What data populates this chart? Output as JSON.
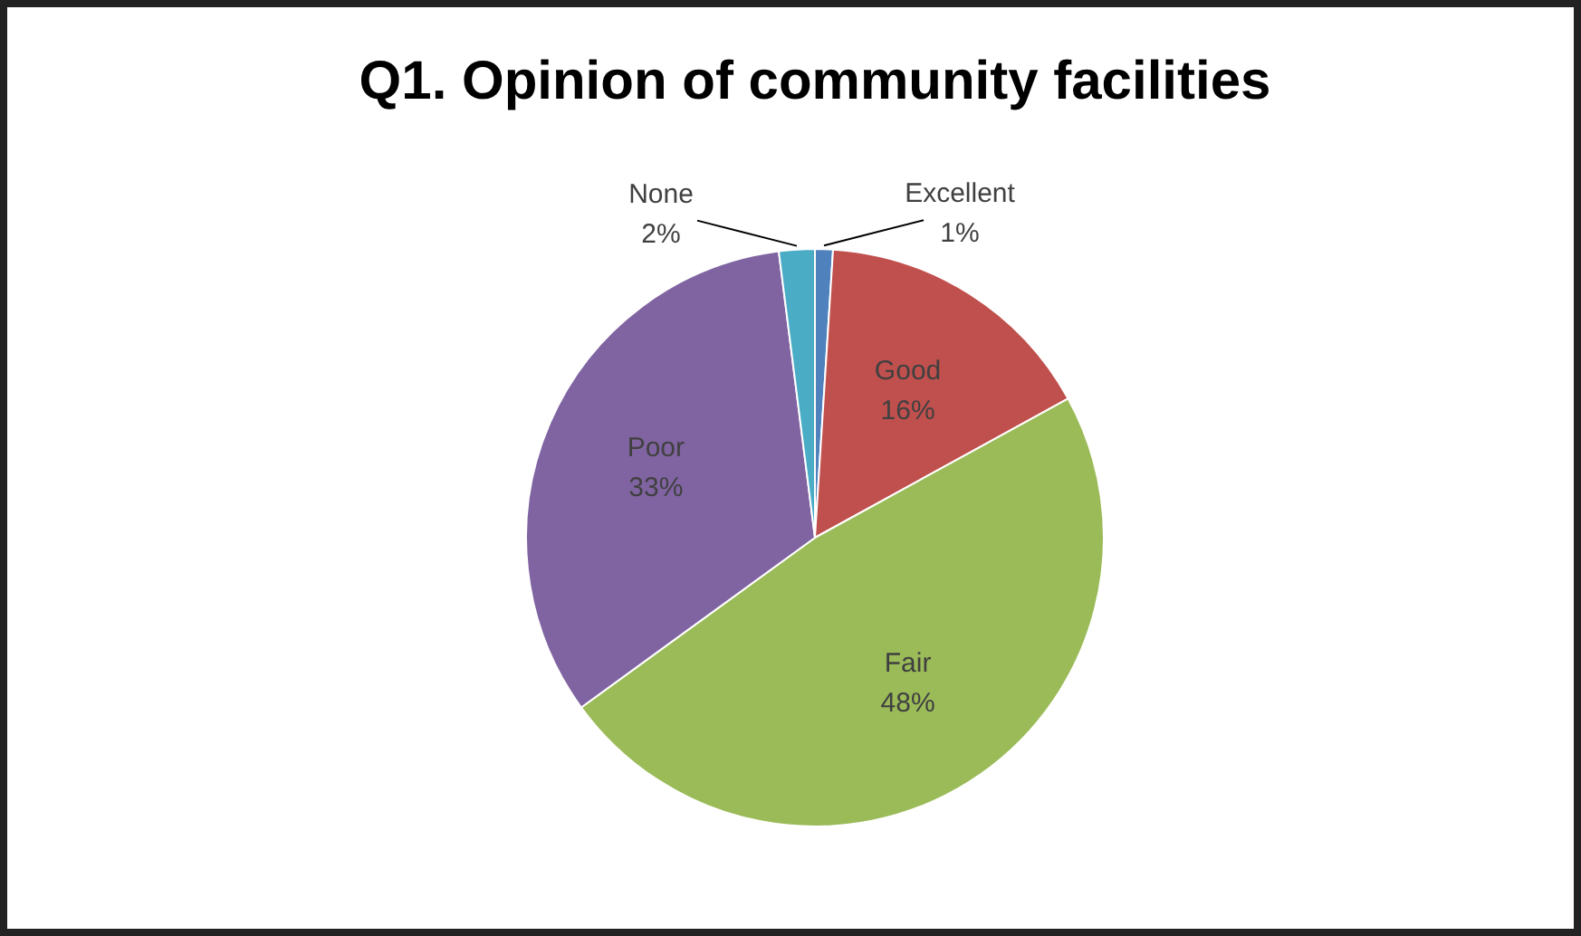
{
  "chart_data": {
    "type": "pie",
    "title": "Q1. Opinion of community facilities",
    "categories": [
      "Excellent",
      "Good",
      "Fair",
      "Poor",
      "None"
    ],
    "values": [
      1,
      16,
      48,
      33,
      2
    ],
    "value_labels": [
      "1%",
      "16%",
      "48%",
      "33%",
      "2%"
    ],
    "colors": [
      "#4f81bd",
      "#c0504d",
      "#9bbb59",
      "#8064a2",
      "#4bacc6"
    ],
    "legend": false
  }
}
